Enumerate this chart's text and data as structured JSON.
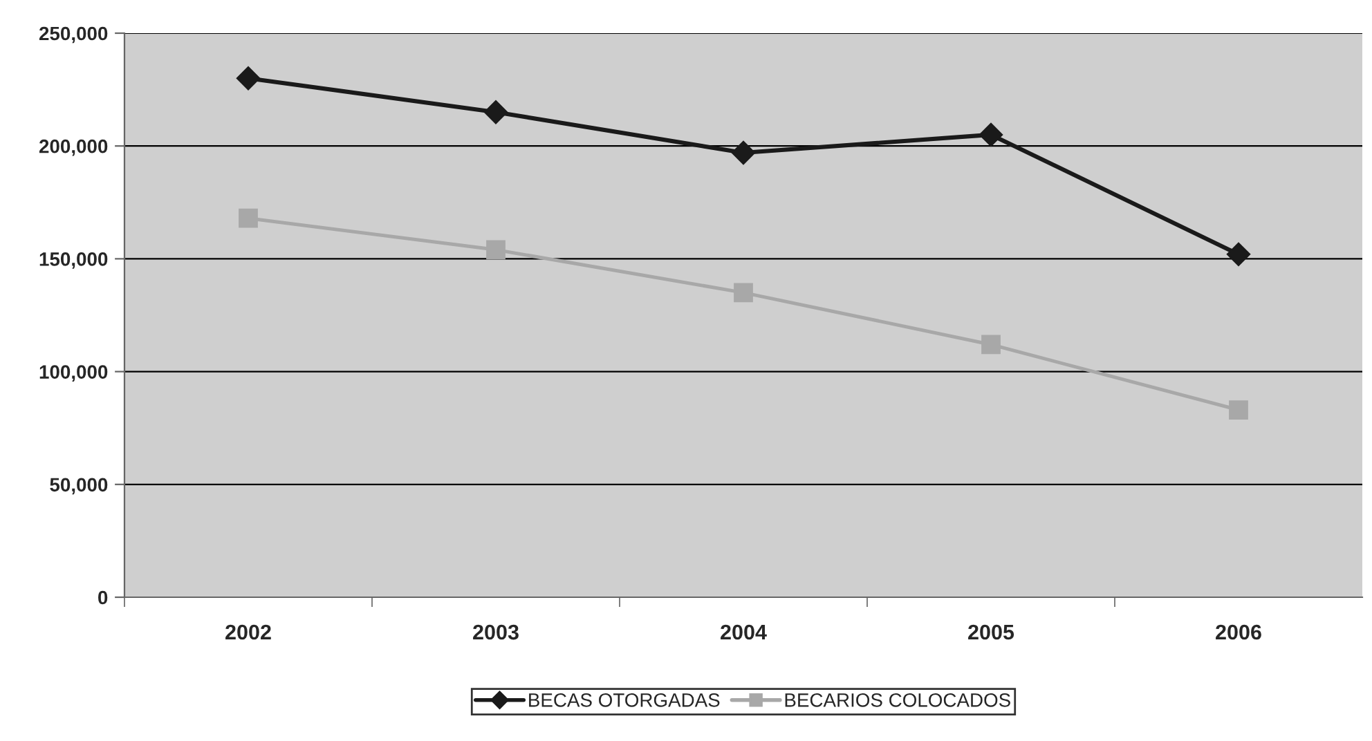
{
  "chart_data": {
    "type": "line",
    "categories": [
      "2002",
      "2003",
      "2004",
      "2005",
      "2006"
    ],
    "series": [
      {
        "name": "BECAS OTORGADAS",
        "color": "#1a1a1a",
        "marker": "diamond",
        "values": [
          230000,
          215000,
          197000,
          205000,
          152000
        ]
      },
      {
        "name": "BECARIOS COLOCADOS",
        "color": "#a8a8a8",
        "marker": "square",
        "values": [
          168000,
          154000,
          135000,
          112000,
          83000
        ]
      }
    ],
    "ylim": [
      0,
      250000
    ],
    "yticks": [
      {
        "value": 0,
        "label": "0"
      },
      {
        "value": 50000,
        "label": "50,000"
      },
      {
        "value": 100000,
        "label": "100,000"
      },
      {
        "value": 150000,
        "label": "150,000"
      },
      {
        "value": 200000,
        "label": "200,000"
      },
      {
        "value": 250000,
        "label": "250,000"
      }
    ],
    "grid": "y",
    "legend": "bottom"
  }
}
